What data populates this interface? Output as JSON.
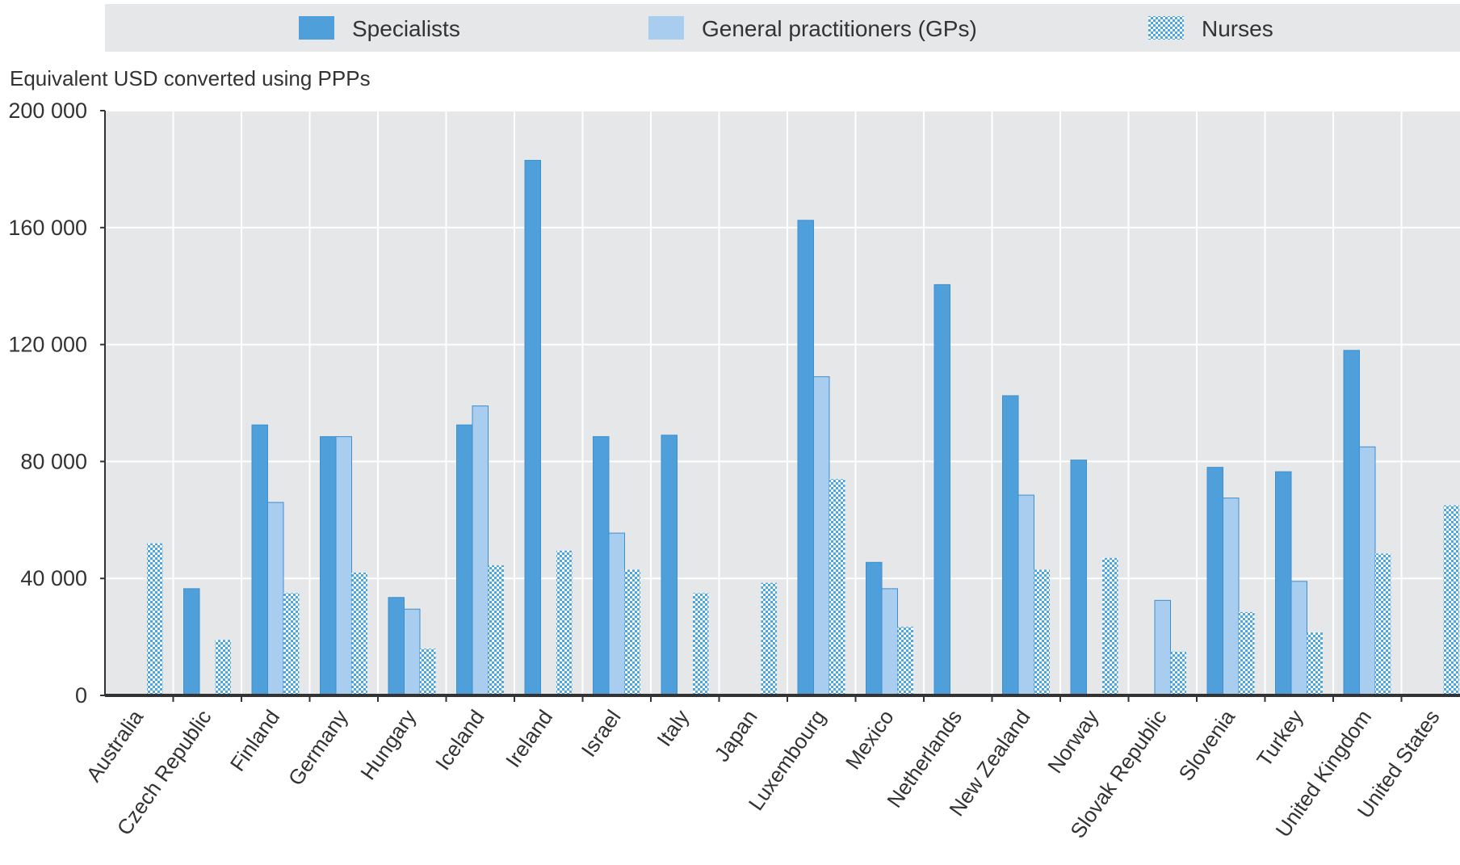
{
  "chart_data": {
    "type": "bar",
    "ylabel": "Equivalent USD converted using PPPs",
    "ylim": [
      0,
      200000
    ],
    "yticks": [
      0,
      40000,
      80000,
      120000,
      160000,
      200000
    ],
    "ytick_labels": [
      "0",
      "40 000",
      "80 000",
      "120 000",
      "160 000",
      "200 000"
    ],
    "grid": true,
    "legend_position": "top",
    "categories": [
      "Australia",
      "Czech Republic",
      "Finland",
      "Germany",
      "Hungary",
      "Iceland",
      "Ireland",
      "Israel",
      "Italy",
      "Japan",
      "Luxembourg",
      "Mexico",
      "Netherlands",
      "New Zealand",
      "Norway",
      "Slovak Republic",
      "Slovenia",
      "Turkey",
      "United Kingdom",
      "United States"
    ],
    "series": [
      {
        "name": "Specialists",
        "color": "#4f9fdb",
        "pattern": "solid",
        "values": [
          null,
          36500,
          92500,
          88500,
          33500,
          92500,
          183000,
          88500,
          89000,
          null,
          162500,
          45500,
          140500,
          102500,
          80500,
          null,
          78000,
          76500,
          118000,
          null
        ]
      },
      {
        "name": "General practitioners (GPs)",
        "color": "#a8cdef",
        "pattern": "solid",
        "values": [
          null,
          null,
          66000,
          88500,
          29500,
          99000,
          null,
          55500,
          null,
          null,
          109000,
          36500,
          null,
          68500,
          null,
          32500,
          67500,
          39000,
          85000,
          null
        ]
      },
      {
        "name": "Nurses",
        "color": "#4aa6e6",
        "pattern": "checker",
        "values": [
          52000,
          19000,
          35000,
          42000,
          16000,
          44500,
          49500,
          43000,
          35000,
          38500,
          74000,
          23500,
          null,
          43000,
          47000,
          15000,
          28500,
          21500,
          48500,
          65000
        ]
      }
    ]
  }
}
